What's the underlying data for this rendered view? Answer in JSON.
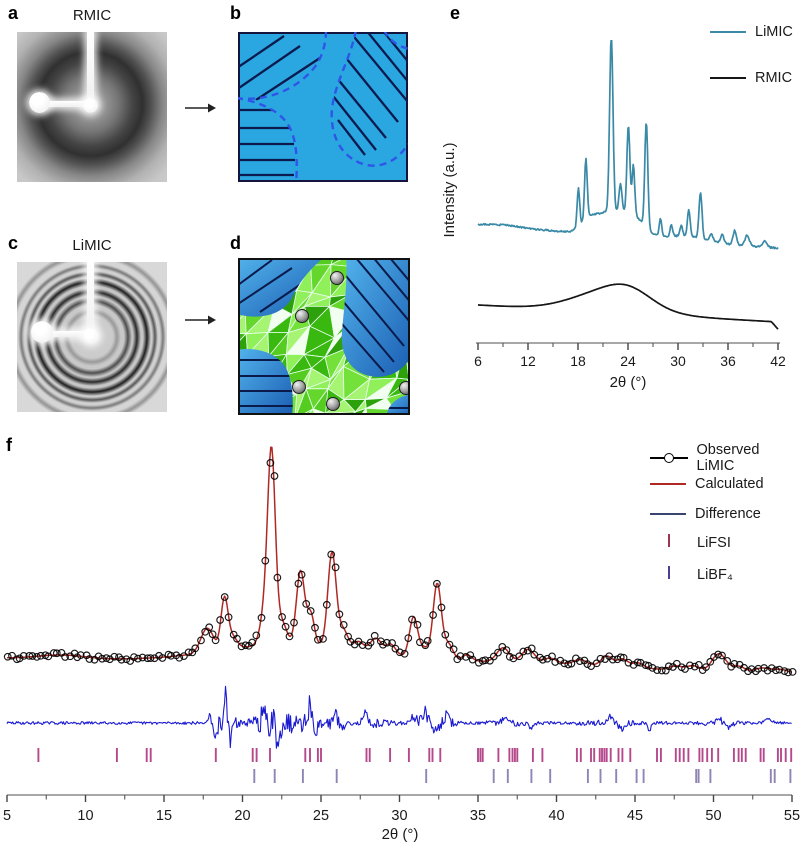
{
  "panels": {
    "a": {
      "label": "a",
      "title": "RMIC"
    },
    "b": {
      "label": "b",
      "colors": {
        "matrix": "#2aa7e0",
        "hatch": "#0c1a4f",
        "boundary": "#2f55e8"
      }
    },
    "c": {
      "label": "c",
      "title": "LiMIC"
    },
    "d": {
      "label": "d",
      "colors": {
        "crystal_green": "#3db312",
        "domain_blue": "#2f8fd8",
        "ion_gray": "#9a9a9a"
      }
    },
    "e": {
      "label": "e"
    },
    "f": {
      "label": "f"
    }
  },
  "chart_data": [
    {
      "panel": "e",
      "type": "line",
      "xlabel": "2θ (°)",
      "ylabel": "Intensity (a.u.)",
      "xlim": [
        6,
        42
      ],
      "x_major_ticks": [
        6,
        12,
        18,
        24,
        30,
        36,
        42
      ],
      "x_minor_ticks": [
        9,
        15,
        21,
        27,
        33,
        39
      ],
      "legend_position": "top-right",
      "series": [
        {
          "name": "LiMIC",
          "color": "#3a89a6",
          "profile": "sharp-peaks-on-flat-baseline",
          "peaks": [
            [
              18.05,
              0.22,
              0.16
            ],
            [
              18.95,
              0.34,
              0.16
            ],
            [
              22.0,
              1.0,
              0.2
            ],
            [
              23.1,
              0.16,
              0.18
            ],
            [
              24.05,
              0.5,
              0.18
            ],
            [
              24.65,
              0.28,
              0.16
            ],
            [
              26.2,
              0.6,
              0.18
            ],
            [
              27.9,
              0.1,
              0.15
            ],
            [
              29.2,
              0.07,
              0.15
            ],
            [
              30.4,
              0.06,
              0.15
            ],
            [
              31.3,
              0.15,
              0.16
            ],
            [
              32.7,
              0.26,
              0.18
            ],
            [
              34.0,
              0.04,
              0.2
            ],
            [
              35.3,
              0.05,
              0.2
            ],
            [
              36.8,
              0.08,
              0.2
            ],
            [
              38.3,
              0.06,
              0.25
            ],
            [
              40.4,
              0.035,
              0.25
            ]
          ],
          "humps": [
            [
              21.8,
              0.13,
              1.6
            ],
            [
              24.8,
              0.1,
              1.3
            ],
            [
              19.3,
              0.06,
              0.9
            ],
            [
              31.0,
              0.03,
              2.0
            ],
            [
              9.0,
              0.012,
              2.0
            ]
          ]
        },
        {
          "name": "RMIC",
          "color": "#161616",
          "profile": "broad-amorphous-hump",
          "humps": [
            [
              21.6,
              20,
              4.3
            ],
            [
              24.2,
              11,
              2.6
            ]
          ]
        }
      ]
    },
    {
      "panel": "f",
      "type": "rietveld-refinement",
      "xlabel": "2θ (°)",
      "xlim": [
        5,
        55
      ],
      "x_major_ticks": [
        5,
        10,
        15,
        20,
        25,
        30,
        35,
        40,
        45,
        50,
        55
      ],
      "x_minor_ticks": [
        7.5,
        12.5,
        17.5,
        22.5,
        27.5,
        32.5,
        37.5,
        42.5,
        47.5,
        52.5
      ],
      "series": [
        {
          "name": "Observed LiMIC",
          "style": "open-circles",
          "color": "#000000"
        },
        {
          "name": "Calculated",
          "style": "line",
          "color": "#b02824"
        },
        {
          "name": "Difference",
          "style": "line",
          "color": "#1a1ad0",
          "legend_color": "#3a4470"
        }
      ],
      "peaks": [
        [
          17.75,
          24,
          0.4
        ],
        [
          18.85,
          50,
          0.22
        ],
        [
          19.35,
          12,
          0.3
        ],
        [
          21.45,
          35,
          0.3
        ],
        [
          21.85,
          182,
          0.24
        ],
        [
          22.5,
          22,
          0.3
        ],
        [
          23.7,
          73,
          0.26
        ],
        [
          24.35,
          30,
          0.22
        ],
        [
          25.7,
          93,
          0.26
        ],
        [
          26.4,
          18,
          0.3
        ],
        [
          27.4,
          8,
          0.3
        ],
        [
          28.5,
          14,
          0.35
        ],
        [
          29.45,
          10,
          0.3
        ],
        [
          30.9,
          40,
          0.26
        ],
        [
          31.6,
          10,
          0.3
        ],
        [
          32.4,
          75,
          0.26
        ],
        [
          33.1,
          16,
          0.3
        ],
        [
          34.3,
          6,
          0.3
        ],
        [
          36.6,
          14,
          0.4
        ],
        [
          38.2,
          13,
          0.4
        ],
        [
          39.6,
          5,
          0.4
        ],
        [
          41.5,
          5,
          0.4
        ],
        [
          43.2,
          10,
          0.35
        ],
        [
          44.2,
          8,
          0.35
        ],
        [
          45.2,
          5,
          0.35
        ],
        [
          47.6,
          4,
          0.4
        ],
        [
          48.7,
          5,
          0.4
        ],
        [
          50.35,
          18,
          0.45
        ],
        [
          51.6,
          6,
          0.4
        ],
        [
          53.1,
          5,
          0.5
        ],
        [
          54.3,
          4,
          0.5
        ]
      ],
      "background_humps": [
        [
          23.5,
          20,
          4.8
        ],
        [
          38.0,
          6,
          6.0
        ],
        [
          8.5,
          4,
          1.5
        ]
      ],
      "difference": {
        "features": [
          [
            17.9,
            8,
            0.1
          ],
          [
            18.25,
            -16,
            0.12
          ],
          [
            18.9,
            28,
            0.1
          ],
          [
            19.2,
            -16,
            0.12
          ],
          [
            21.3,
            14,
            0.09
          ],
          [
            21.7,
            -18,
            0.08
          ],
          [
            22.0,
            16,
            0.07
          ],
          [
            22.25,
            -20,
            0.08
          ],
          [
            23.6,
            12,
            0.1
          ],
          [
            24.3,
            20,
            0.1
          ],
          [
            24.65,
            -12,
            0.1
          ],
          [
            25.9,
            8,
            0.12
          ],
          [
            26.4,
            -6,
            0.1
          ],
          [
            27.8,
            10,
            0.15
          ],
          [
            28.3,
            -6,
            0.12
          ],
          [
            30.9,
            8,
            0.12
          ],
          [
            31.6,
            14,
            0.12
          ],
          [
            32.3,
            -10,
            0.12
          ],
          [
            33.0,
            8,
            0.12
          ],
          [
            36.7,
            6,
            0.15
          ],
          [
            38.4,
            -5,
            0.15
          ],
          [
            43.4,
            7,
            0.15
          ],
          [
            44.1,
            -6,
            0.15
          ],
          [
            45.9,
            -7,
            0.12
          ],
          [
            50.3,
            6,
            0.15
          ],
          [
            51.0,
            -5,
            0.15
          ],
          [
            53.5,
            4,
            0.2
          ]
        ],
        "noise_bursts": [
          [
            18.9,
            10,
            0.5
          ],
          [
            21.9,
            16,
            0.8
          ],
          [
            23.9,
            9,
            0.7
          ],
          [
            25.8,
            5,
            0.5
          ],
          [
            28.5,
            3,
            0.8
          ],
          [
            31.6,
            6,
            0.7
          ],
          [
            33.0,
            4,
            0.5
          ],
          [
            37.0,
            2,
            1.0
          ],
          [
            43.5,
            2,
            1.5
          ],
          [
            50.3,
            2.5,
            0.8
          ]
        ],
        "base_noise": 1.4
      },
      "phase_ticks": [
        {
          "name": "LiFSI",
          "color": "#b5498b",
          "legend_color": "#9c3550",
          "positions": [
            7.0,
            12.0,
            13.9,
            14.15,
            18.3,
            20.65,
            20.9,
            21.75,
            24.0,
            24.3,
            24.8,
            25.0,
            27.9,
            28.1,
            29.4,
            30.6,
            31.9,
            32.1,
            32.6,
            35.0,
            35.15,
            35.3,
            36.3,
            37.0,
            37.2,
            37.35,
            37.5,
            38.5,
            39.1,
            41.3,
            41.55,
            42.2,
            42.4,
            42.75,
            42.9,
            43.05,
            43.2,
            43.45,
            43.95,
            44.2,
            44.7,
            46.4,
            46.65,
            47.6,
            47.85,
            48.1,
            48.4,
            49.1,
            49.3,
            49.6,
            49.9,
            50.3,
            51.3,
            51.6,
            51.8,
            52.05,
            53.0,
            53.2,
            54.1,
            54.3,
            54.6,
            54.95
          ]
        },
        {
          "name": "LiBF₄",
          "color": "#8f84b4",
          "legend_color": "#4a3e96",
          "positions": [
            20.75,
            22.05,
            23.85,
            26.0,
            31.7,
            36.0,
            36.9,
            38.4,
            39.6,
            42.0,
            42.8,
            43.8,
            45.1,
            45.55,
            48.9,
            49.05,
            49.8,
            53.65,
            53.9,
            54.9
          ]
        }
      ]
    }
  ]
}
